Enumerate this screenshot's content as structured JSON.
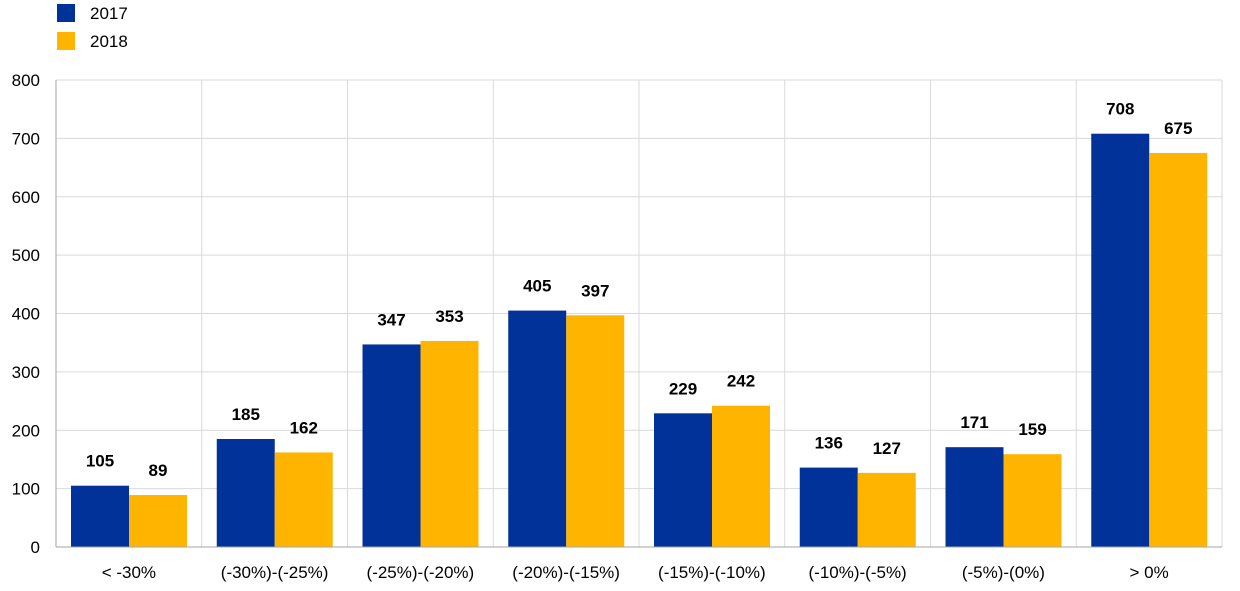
{
  "chart_data": {
    "type": "bar",
    "categories": [
      "< -30%",
      "(-30%)-(-25%)",
      "(-25%)-(-20%)",
      "(-20%)-(-15%)",
      "(-15%)-(-10%)",
      "(-10%)-(-5%)",
      "(-5%)-(0%)",
      "> 0%"
    ],
    "series": [
      {
        "name": "2017",
        "color": "#003299",
        "values": [
          105,
          185,
          347,
          405,
          229,
          136,
          171,
          708
        ]
      },
      {
        "name": "2018",
        "color": "#FFB400",
        "values": [
          89,
          162,
          353,
          397,
          242,
          127,
          159,
          675
        ]
      }
    ],
    "ylim": [
      0,
      800
    ],
    "yticks": [
      0,
      100,
      200,
      300,
      400,
      500,
      600,
      700,
      800
    ],
    "title": "",
    "xlabel": "",
    "ylabel": "",
    "grid": true,
    "legend_position": "top-left",
    "data_labels": true
  }
}
